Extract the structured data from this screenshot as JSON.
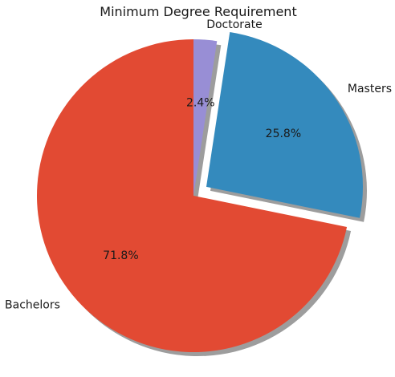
{
  "chart_data": {
    "type": "pie",
    "title": "Minimum Degree Requirement",
    "categories": [
      "Doctorate",
      "Masters",
      "Bachelors"
    ],
    "values": [
      2.4,
      25.8,
      71.8
    ],
    "value_labels": [
      "2.4%",
      "25.8%",
      "71.8%"
    ],
    "colors": [
      "#988ED5",
      "#348ABD",
      "#E24A33"
    ],
    "explode": [
      0,
      0.1,
      0
    ],
    "shadow": true,
    "start_angle_deg": 90,
    "direction": "clockwise"
  }
}
